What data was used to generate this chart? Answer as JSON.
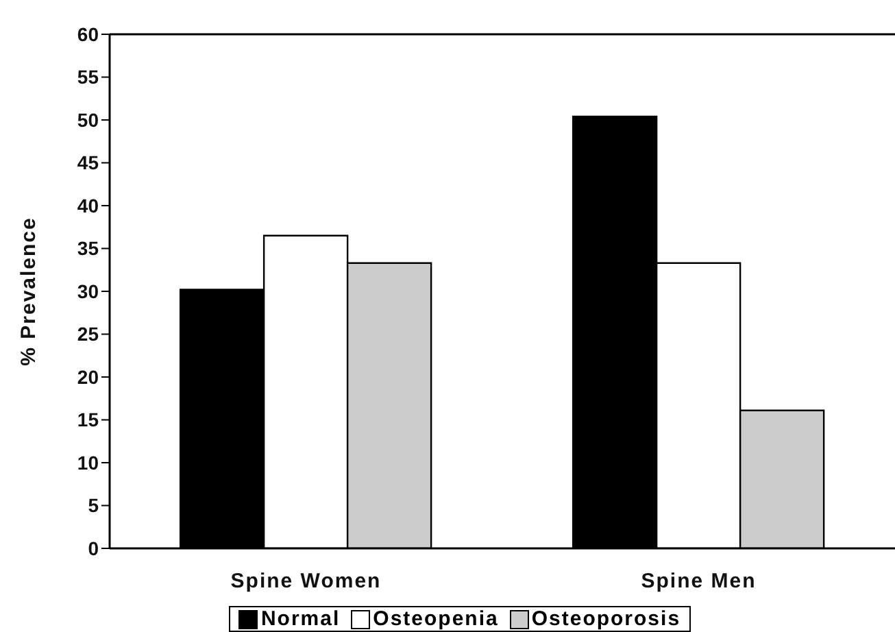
{
  "chart_data": {
    "type": "bar",
    "ylabel": "% Prevalence",
    "categories": [
      "Spine Women",
      "Spine Men"
    ],
    "series": [
      {
        "name": "Normal",
        "color": "#000000",
        "values": [
          30.2,
          50.4
        ]
      },
      {
        "name": "Osteopenia",
        "color": "#ffffff",
        "values": [
          36.5,
          33.3
        ]
      },
      {
        "name": "Osteoporosis",
        "color": "#cccccc",
        "values": [
          33.3,
          16.1
        ]
      }
    ],
    "ylim": [
      0,
      60
    ],
    "yticks": [
      0,
      5,
      10,
      15,
      20,
      25,
      30,
      35,
      40,
      45,
      50,
      55,
      60
    ],
    "grid": false,
    "legend": "bottom"
  }
}
